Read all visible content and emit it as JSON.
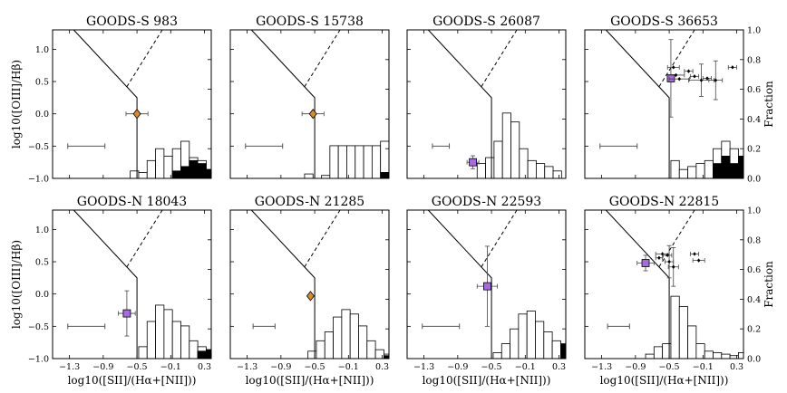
{
  "figure": {
    "xlabel": "log10([SII]/(Hα+[NII]))",
    "ylabel": "log10([OIII]/Hβ)",
    "right_label": "Fraction",
    "x_ticks": [
      "−1.3",
      "−0.9",
      "−0.5",
      "−0.1",
      "0.3"
    ],
    "y_ticks": [
      "−1.0",
      "−0.5",
      "0.0",
      "0.5",
      "1.0"
    ],
    "frac_ticks": [
      "0.0",
      "0.2",
      "0.4",
      "0.6",
      "0.8",
      "1.0"
    ]
  },
  "chart_data": [
    {
      "type": "scatter",
      "title": "GOODS-S 983",
      "xlim": [
        -1.5,
        0.38
      ],
      "ylim": [
        -1.0,
        1.3
      ],
      "marker": "diamond",
      "marker_color": "#d98a2a",
      "points": [
        {
          "x": -0.5,
          "y": 0.0,
          "xerr": 0.13,
          "yerr": 0.0
        }
      ],
      "typical_error": {
        "x": -1.1,
        "y": -0.5,
        "xerr": 0.22
      },
      "hist_bins": [
        -0.58,
        -0.48,
        -0.38,
        -0.28,
        -0.18,
        -0.08,
        0.02,
        0.12,
        0.22,
        0.32,
        0.38
      ],
      "hist_open": [
        0.05,
        0.04,
        0.12,
        0.2,
        0.15,
        0.2,
        0.25,
        0.14,
        0.12,
        0.06
      ],
      "hist_filled": [
        0,
        0,
        0,
        0,
        0,
        0.05,
        0.08,
        0.12,
        0.1,
        0.06
      ]
    },
    {
      "type": "scatter",
      "title": "GOODS-S 15738",
      "xlim": [
        -1.5,
        0.38
      ],
      "ylim": [
        -1.0,
        1.3
      ],
      "marker": "diamond",
      "marker_color": "#d98a2a",
      "points": [
        {
          "x": -0.52,
          "y": 0.0,
          "xerr": 0.13,
          "yerr": 0.0
        }
      ],
      "typical_error": {
        "x": -1.1,
        "y": -0.5,
        "xerr": 0.22
      },
      "hist_bins": [
        -0.62,
        -0.52,
        -0.42,
        -0.32,
        -0.22,
        -0.12,
        -0.02,
        0.08,
        0.18,
        0.28,
        0.38
      ],
      "hist_open": [
        0.03,
        0,
        0.02,
        0.22,
        0.22,
        0.22,
        0.22,
        0.22,
        0.22,
        0.25
      ],
      "hist_filled": [
        0,
        0,
        0,
        0,
        0,
        0,
        0,
        0,
        0,
        0.04
      ]
    },
    {
      "type": "scatter",
      "title": "GOODS-S 26087",
      "xlim": [
        -1.5,
        0.38
      ],
      "ylim": [
        -1.0,
        1.3
      ],
      "marker": "square",
      "marker_color": "#a66be0",
      "points": [
        {
          "x": -0.72,
          "y": -0.75,
          "xerr": 0.07,
          "yerr": 0.1
        }
      ],
      "typical_error": {
        "x": -1.1,
        "y": -0.5,
        "xerr": 0.1
      },
      "hist_bins": [
        -0.67,
        -0.57,
        -0.47,
        -0.37,
        -0.27,
        -0.17,
        -0.07,
        0.03,
        0.13,
        0.23,
        0.33
      ],
      "hist_open": [
        0.1,
        0.14,
        0.25,
        0.44,
        0.38,
        0.2,
        0.12,
        0.1,
        0.08,
        0.05
      ],
      "hist_filled": [
        0,
        0,
        0,
        0,
        0,
        0,
        0,
        0,
        0,
        0
      ]
    },
    {
      "type": "scatter",
      "title": "GOODS-S 36653",
      "xlim": [
        -1.5,
        0.38
      ],
      "ylim": [
        -1.0,
        1.3
      ],
      "marker": "square",
      "marker_color": "#a66be0",
      "points": [
        {
          "x": -0.48,
          "y": 0.55,
          "xerr": 0.0,
          "yerr": 0.6
        },
        {
          "x": -0.45,
          "y": 0.72,
          "xerr": 0.07,
          "yerr": 0.0
        },
        {
          "x": -0.27,
          "y": 0.66,
          "xerr": 0.05,
          "yerr": 0.0
        },
        {
          "x": -0.42,
          "y": 0.6,
          "xerr": 0.1,
          "yerr": 0.0
        },
        {
          "x": -0.38,
          "y": 0.54,
          "xerr": 0.12,
          "yerr": 0.0
        },
        {
          "x": -0.2,
          "y": 0.58,
          "xerr": 0.05,
          "yerr": 0.0
        },
        {
          "x": -0.12,
          "y": 0.52,
          "xerr": 0.15,
          "yerr": 0.25
        },
        {
          "x": -0.05,
          "y": 0.55,
          "xerr": 0.05,
          "yerr": 0.0
        },
        {
          "x": 0.05,
          "y": 0.52,
          "xerr": 0.08,
          "yerr": 0.3
        },
        {
          "x": 0.25,
          "y": 0.72,
          "xerr": 0.05,
          "yerr": 0.0
        }
      ],
      "highlight_index": 0,
      "typical_error": {
        "x": -1.1,
        "y": -0.5,
        "xerr": 0.22
      },
      "hist_bins": [
        -0.48,
        -0.38,
        -0.28,
        -0.18,
        -0.08,
        0.02,
        0.12,
        0.22,
        0.32,
        0.38
      ],
      "hist_open": [
        0.12,
        0.06,
        0.08,
        0.1,
        0.12,
        0.2,
        0.25,
        0.2,
        0.15
      ],
      "hist_filled": [
        0,
        0,
        0,
        0,
        0,
        0.1,
        0.15,
        0.1,
        0.15
      ]
    },
    {
      "type": "scatter",
      "title": "GOODS-N 18043",
      "xlim": [
        -1.5,
        0.38
      ],
      "ylim": [
        -1.0,
        1.3
      ],
      "marker": "square",
      "marker_color": "#a66be0",
      "points": [
        {
          "x": -0.62,
          "y": -0.3,
          "xerr": 0.1,
          "yerr": 0.35
        }
      ],
      "typical_error": {
        "x": -1.1,
        "y": -0.5,
        "xerr": 0.22
      },
      "hist_bins": [
        -0.48,
        -0.38,
        -0.28,
        -0.18,
        -0.08,
        0.02,
        0.12,
        0.22,
        0.32,
        0.38
      ],
      "hist_open": [
        0.08,
        0.25,
        0.36,
        0.33,
        0.25,
        0.22,
        0.12,
        0.08,
        0.06
      ],
      "hist_filled": [
        0,
        0,
        0,
        0,
        0,
        0,
        0,
        0.05,
        0.06
      ]
    },
    {
      "type": "scatter",
      "title": "GOODS-N 21285",
      "xlim": [
        -1.5,
        0.38
      ],
      "ylim": [
        -1.0,
        1.3
      ],
      "marker": "diamond",
      "marker_color": "#d98a2a",
      "points": [
        {
          "x": -0.55,
          "y": -0.03,
          "xerr": 0.0,
          "yerr": 0.0
        }
      ],
      "typical_error": {
        "x": -1.1,
        "y": -0.5,
        "xerr": 0.13
      },
      "hist_bins": [
        -0.58,
        -0.48,
        -0.38,
        -0.28,
        -0.18,
        -0.08,
        0.02,
        0.12,
        0.22,
        0.32,
        0.38
      ],
      "hist_open": [
        0.05,
        0.12,
        0.18,
        0.28,
        0.33,
        0.3,
        0.22,
        0.12,
        0.06,
        0.03
      ],
      "hist_filled": [
        0,
        0,
        0,
        0,
        0,
        0,
        0,
        0,
        0,
        0.02
      ]
    },
    {
      "type": "scatter",
      "title": "GOODS-N 22593",
      "xlim": [
        -1.5,
        0.38
      ],
      "ylim": [
        -1.0,
        1.3
      ],
      "marker": "square",
      "marker_color": "#a66be0",
      "points": [
        {
          "x": -0.55,
          "y": 0.12,
          "xerr": 0.12,
          "yerr": 0.62
        }
      ],
      "typical_error": {
        "x": -1.1,
        "y": -0.5,
        "xerr": 0.22
      },
      "hist_bins": [
        -0.48,
        -0.38,
        -0.28,
        -0.18,
        -0.08,
        0.02,
        0.12,
        0.22,
        0.32,
        0.38
      ],
      "hist_open": [
        0.04,
        0.1,
        0.2,
        0.3,
        0.32,
        0.25,
        0.18,
        0.12,
        0.08
      ],
      "hist_filled": [
        0,
        0,
        0,
        0,
        0,
        0,
        0,
        0,
        0.1
      ]
    },
    {
      "type": "scatter",
      "title": "GOODS-N 22815",
      "xlim": [
        -1.5,
        0.38
      ],
      "ylim": [
        -1.0,
        1.3
      ],
      "marker": "square",
      "marker_color": "#a66be0",
      "points": [
        {
          "x": -0.78,
          "y": 0.48,
          "xerr": 0.1,
          "yerr": 0.12
        },
        {
          "x": -0.58,
          "y": 0.62,
          "xerr": 0.08,
          "yerr": 0.0
        },
        {
          "x": -0.52,
          "y": 0.6,
          "xerr": 0.05,
          "yerr": 0.0
        },
        {
          "x": -0.62,
          "y": 0.56,
          "xerr": 0.04,
          "yerr": 0.0
        },
        {
          "x": -0.5,
          "y": 0.5,
          "xerr": 0.05,
          "yerr": 0.25
        },
        {
          "x": -0.45,
          "y": 0.42,
          "xerr": 0.06,
          "yerr": 0.3
        },
        {
          "x": -0.2,
          "y": 0.62,
          "xerr": 0.05,
          "yerr": 0.0
        },
        {
          "x": -0.15,
          "y": 0.52,
          "xerr": 0.07,
          "yerr": 0.0
        }
      ],
      "highlight_index": 0,
      "typical_error": {
        "x": -1.1,
        "y": -0.5,
        "xerr": 0.13
      },
      "hist_bins": [
        -0.78,
        -0.68,
        -0.58,
        -0.48,
        -0.38,
        -0.28,
        -0.18,
        -0.08,
        0.02,
        0.12,
        0.22,
        0.32,
        0.38
      ],
      "hist_open": [
        0.03,
        0.08,
        0.1,
        0.42,
        0.35,
        0.22,
        0.1,
        0.05,
        0.04,
        0.03,
        0.02,
        0.04
      ],
      "hist_filled": [
        0,
        0,
        0,
        0,
        0,
        0,
        0,
        0,
        0,
        0,
        0,
        0
      ]
    }
  ]
}
